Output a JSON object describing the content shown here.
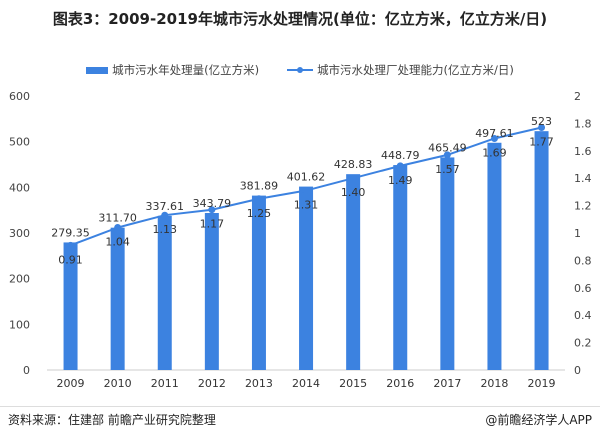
{
  "chart_data": {
    "type": "bar+line",
    "title": "图表3：2009-2019年城市污水处理情况(单位：亿立方米，亿立方米/日)",
    "categories": [
      "2009",
      "2010",
      "2011",
      "2012",
      "2013",
      "2014",
      "2015",
      "2016",
      "2017",
      "2018",
      "2019"
    ],
    "series": [
      {
        "name": "城市污水年处理量(亿立方米)",
        "type": "bar",
        "axis": "left",
        "color": "#3c82e0",
        "values": [
          279.35,
          311.7,
          337.61,
          343.79,
          381.89,
          401.62,
          428.83,
          448.79,
          465.49,
          497.61,
          523
        ],
        "labels": [
          "279.35",
          "311.70",
          "337.61",
          "343.79",
          "381.89",
          "401.62",
          "428.83",
          "448.79",
          "465.49",
          "497.61",
          "523"
        ]
      },
      {
        "name": "城市污水处理厂处理能力(亿立方米/日)",
        "type": "line",
        "axis": "right",
        "color": "#3c82e0",
        "values": [
          0.91,
          1.04,
          1.13,
          1.17,
          1.25,
          1.31,
          1.4,
          1.49,
          1.57,
          1.69,
          1.77
        ],
        "labels": [
          "0.91",
          "1.04",
          "1.13",
          "1.17",
          "1.25",
          "1.31",
          "1.40",
          "1.49",
          "1.57",
          "1.69",
          "1.77"
        ]
      }
    ],
    "ylim_left": [
      0,
      600
    ],
    "yticks_left": [
      "0",
      "100",
      "200",
      "300",
      "400",
      "500",
      "600"
    ],
    "ylim_right": [
      0,
      2
    ],
    "yticks_right": [
      "0",
      "0.2",
      "0.4",
      "0.6",
      "0.8",
      "1",
      "1.2",
      "1.4",
      "1.6",
      "1.8",
      "2"
    ],
    "grid": false,
    "legend": "top"
  },
  "footer": {
    "source": "资料来源：住建部 前瞻产业研究院整理",
    "brand": "@前瞻经济学人APP"
  }
}
